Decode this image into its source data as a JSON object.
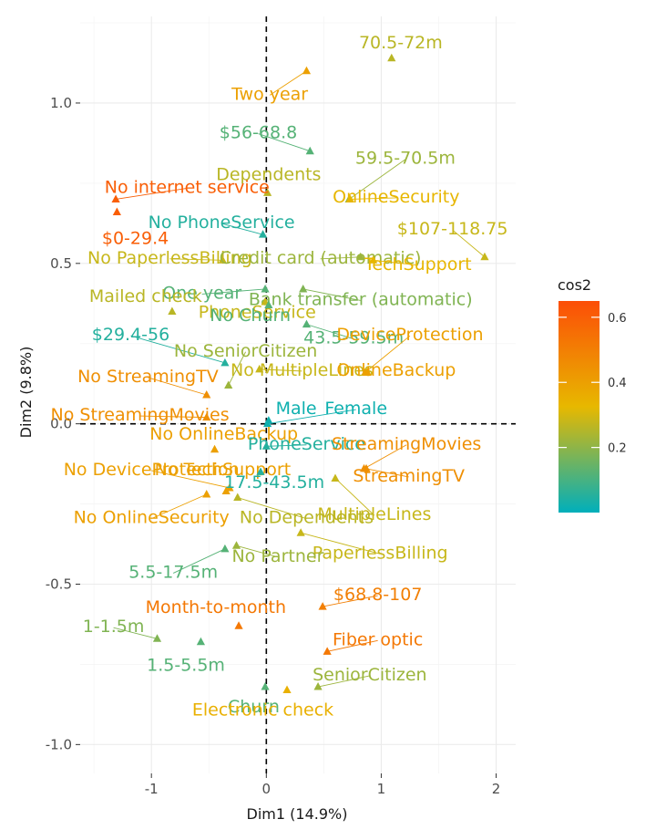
{
  "chart_data": {
    "type": "scatter",
    "xlabel": "Dim1 (14.9%)",
    "ylabel": "Dim2 (9.8%)",
    "xlim": [
      -1.62,
      2.17
    ],
    "ylim": [
      -1.09,
      1.27
    ],
    "xticks": [
      -1,
      0,
      1,
      2
    ],
    "yticks": [
      -1.0,
      -0.5,
      0.0,
      0.5,
      1.0
    ],
    "xtick_labels": [
      "-1",
      "0",
      "1",
      "2"
    ],
    "ytick_labels": [
      "-1.0",
      "-0.5",
      "0.0",
      "0.5",
      "1.0"
    ],
    "reference_lines": {
      "x": 0,
      "y": 0,
      "style": "dashed"
    },
    "grid": true,
    "legend": {
      "title": "cos2",
      "position": "right",
      "ticks": [
        0.2,
        0.4,
        0.6
      ],
      "tick_labels": [
        "0.2",
        "0.4",
        "0.6"
      ],
      "range": [
        0.0,
        0.65
      ],
      "colors": [
        "#00AFBB",
        "#E7B800",
        "#FC4E07"
      ]
    },
    "points": [
      {
        "label": "70.5-72m",
        "x": 1.09,
        "y": 1.14,
        "cos2": 0.26,
        "lx": 1.17,
        "ly": 1.19
      },
      {
        "label": "Two year",
        "x": 0.35,
        "y": 1.1,
        "cos2": 0.4,
        "lx": 0.03,
        "ly": 1.03
      },
      {
        "label": "$56-68.8",
        "x": 0.38,
        "y": 0.85,
        "cos2": 0.12,
        "lx": -0.07,
        "ly": 0.91
      },
      {
        "label": "59.5-70.5m",
        "x": 0.72,
        "y": 0.7,
        "cos2": 0.22,
        "lx": 1.21,
        "ly": 0.83
      },
      {
        "label": "Dependents",
        "x": 0.01,
        "y": 0.72,
        "cos2": 0.26,
        "lx": 0.02,
        "ly": 0.78
      },
      {
        "label": "OnlineSecurity",
        "x": 0.73,
        "y": 0.7,
        "cos2": 0.33,
        "lx": 1.13,
        "ly": 0.71
      },
      {
        "label": "No internet service",
        "x": -1.31,
        "y": 0.7,
        "cos2": 0.6,
        "lx": -0.69,
        "ly": 0.74
      },
      {
        "label": "$0-29.4",
        "x": -1.3,
        "y": 0.66,
        "cos2": 0.6,
        "lx": -1.14,
        "ly": 0.58
      },
      {
        "label": "No PhoneService",
        "x": -0.03,
        "y": 0.59,
        "cos2": 0.05,
        "lx": -0.39,
        "ly": 0.63
      },
      {
        "label": "$107-118.75",
        "x": 1.9,
        "y": 0.52,
        "cos2": 0.28,
        "lx": 1.62,
        "ly": 0.61
      },
      {
        "label": "No PaperlessBilling",
        "x": -0.38,
        "y": 0.51,
        "cos2": 0.28,
        "lx": -0.84,
        "ly": 0.52
      },
      {
        "label": "Credit card (automatic)",
        "x": 0.82,
        "y": 0.52,
        "cos2": 0.22,
        "lx": 0.47,
        "ly": 0.52
      },
      {
        "label": "TechSupport",
        "x": 0.93,
        "y": 0.51,
        "cos2": 0.33,
        "lx": 1.32,
        "ly": 0.5
      },
      {
        "label": "One year",
        "x": -0.01,
        "y": 0.42,
        "cos2": 0.12,
        "lx": -0.56,
        "ly": 0.41
      },
      {
        "label": "Bank transfer (automatic)",
        "x": 0.32,
        "y": 0.42,
        "cos2": 0.18,
        "lx": 0.82,
        "ly": 0.39
      },
      {
        "label": "Mailed check",
        "x": -0.82,
        "y": 0.35,
        "cos2": 0.26,
        "lx": -1.05,
        "ly": 0.4
      },
      {
        "label": "PhoneService",
        "x": -0.01,
        "y": 0.38,
        "cos2": 0.28,
        "lx": -0.08,
        "ly": 0.35
      },
      {
        "label": "No Churn",
        "x": 0.02,
        "y": 0.37,
        "cos2": 0.12,
        "lx": -0.14,
        "ly": 0.34
      },
      {
        "label": "43.5-59.5m",
        "x": 0.35,
        "y": 0.31,
        "cos2": 0.12,
        "lx": 0.76,
        "ly": 0.27
      },
      {
        "label": "DeviceProtection",
        "x": 0.86,
        "y": 0.16,
        "cos2": 0.4,
        "lx": 1.25,
        "ly": 0.28
      },
      {
        "label": "$29.4-56",
        "x": -0.36,
        "y": 0.19,
        "cos2": 0.05,
        "lx": -1.18,
        "ly": 0.28
      },
      {
        "label": "No SeniorCitizen",
        "x": -0.33,
        "y": 0.12,
        "cos2": 0.22,
        "lx": -0.18,
        "ly": 0.23
      },
      {
        "label": "No MultipleLines",
        "x": -0.06,
        "y": 0.17,
        "cos2": 0.28,
        "lx": 0.31,
        "ly": 0.17
      },
      {
        "label": "OnlineBackup",
        "x": 0.88,
        "y": 0.16,
        "cos2": 0.4,
        "lx": 1.13,
        "ly": 0.17
      },
      {
        "label": "No StreamingTV",
        "x": -0.52,
        "y": 0.09,
        "cos2": 0.45,
        "lx": -1.03,
        "ly": 0.15
      },
      {
        "label": "Male",
        "x": 0.02,
        "y": 0.01,
        "cos2": 0.02,
        "lx": 0.26,
        "ly": 0.05
      },
      {
        "label": "Female",
        "x": 0.01,
        "y": 0.0,
        "cos2": 0.02,
        "lx": 0.78,
        "ly": 0.05
      },
      {
        "label": "No StreamingMovies",
        "x": -0.52,
        "y": 0.02,
        "cos2": 0.45,
        "lx": -1.1,
        "ly": 0.03
      },
      {
        "label": "No OnlineBackup",
        "x": -0.45,
        "y": -0.08,
        "cos2": 0.4,
        "lx": -0.37,
        "ly": -0.03
      },
      {
        "label": "PhoneService",
        "x": 0.0,
        "y": -0.07,
        "cos2": 0.05,
        "lx": 0.35,
        "ly": -0.06
      },
      {
        "label": "StreamingMovies",
        "x": 0.85,
        "y": -0.14,
        "cos2": 0.45,
        "lx": 1.22,
        "ly": -0.06
      },
      {
        "label": "No DeviceProtection",
        "x": -0.32,
        "y": -0.2,
        "cos2": 0.4,
        "lx": -1.0,
        "ly": -0.14
      },
      {
        "label": "No TechSupport",
        "x": -0.35,
        "y": -0.21,
        "cos2": 0.4,
        "lx": -0.38,
        "ly": -0.14
      },
      {
        "label": "17.5-43.5m",
        "x": -0.05,
        "y": -0.15,
        "cos2": 0.05,
        "lx": 0.07,
        "ly": -0.18
      },
      {
        "label": "StreamingTV",
        "x": 0.87,
        "y": -0.14,
        "cos2": 0.45,
        "lx": 1.24,
        "ly": -0.16
      },
      {
        "label": "MultipleLines",
        "x": 0.6,
        "y": -0.17,
        "cos2": 0.28,
        "lx": 0.94,
        "ly": -0.28
      },
      {
        "label": "No OnlineSecurity",
        "x": -0.52,
        "y": -0.22,
        "cos2": 0.4,
        "lx": -1.0,
        "ly": -0.29
      },
      {
        "label": "No Dependents",
        "x": -0.25,
        "y": -0.23,
        "cos2": 0.26,
        "lx": 0.35,
        "ly": -0.29
      },
      {
        "label": "PaperlessBilling",
        "x": 0.3,
        "y": -0.34,
        "cos2": 0.28,
        "lx": 0.99,
        "ly": -0.4
      },
      {
        "label": "No Partner",
        "x": -0.26,
        "y": -0.38,
        "cos2": 0.22,
        "lx": 0.1,
        "ly": -0.41
      },
      {
        "label": "5.5-17.5m",
        "x": -0.36,
        "y": -0.39,
        "cos2": 0.12,
        "lx": -0.81,
        "ly": -0.46
      },
      {
        "label": "$68.8-107",
        "x": 0.49,
        "y": -0.57,
        "cos2": 0.5,
        "lx": 0.97,
        "ly": -0.53
      },
      {
        "label": "Month-to-month",
        "x": -0.24,
        "y": -0.63,
        "cos2": 0.52,
        "lx": -0.44,
        "ly": -0.57
      },
      {
        "label": "1-1.5m",
        "x": -0.95,
        "y": -0.67,
        "cos2": 0.18,
        "lx": -1.33,
        "ly": -0.63
      },
      {
        "label": "1.5-5.5m",
        "x": -0.57,
        "y": -0.68,
        "cos2": 0.12,
        "lx": -0.7,
        "ly": -0.75
      },
      {
        "label": "Fiber optic",
        "x": 0.53,
        "y": -0.71,
        "cos2": 0.52,
        "lx": 0.97,
        "ly": -0.67
      },
      {
        "label": "SeniorCitizen",
        "x": 0.45,
        "y": -0.82,
        "cos2": 0.22,
        "lx": 0.9,
        "ly": -0.78
      },
      {
        "label": "Churn",
        "x": -0.01,
        "y": -0.82,
        "cos2": 0.12,
        "lx": -0.11,
        "ly": -0.88
      },
      {
        "label": "Electronic check",
        "x": 0.18,
        "y": -0.83,
        "cos2": 0.35,
        "lx": -0.03,
        "ly": -0.89
      }
    ]
  }
}
